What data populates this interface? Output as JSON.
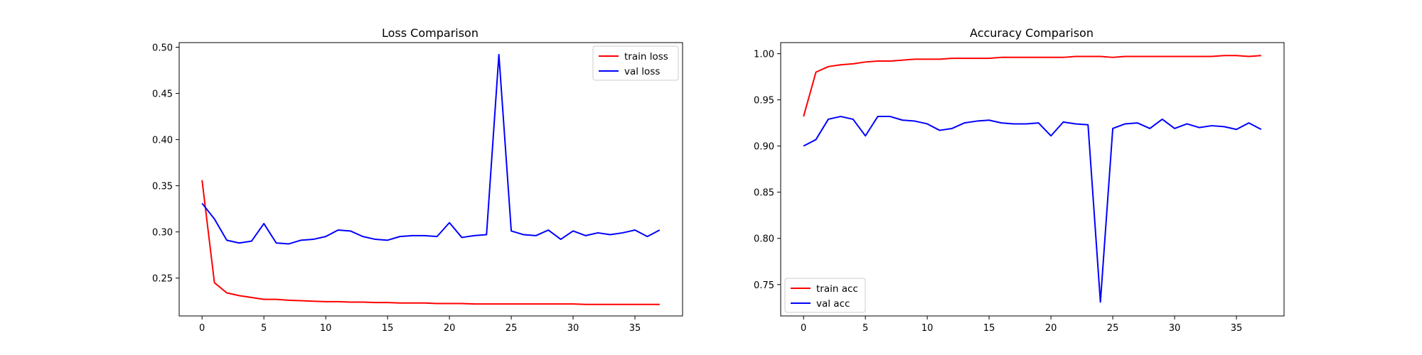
{
  "chart_data": [
    {
      "type": "line",
      "title": "Loss Comparison",
      "xlabel": "",
      "ylabel": "",
      "xlim": [
        -1.85,
        38.85
      ],
      "ylim": [
        0.209,
        0.505
      ],
      "xticks": [
        0,
        5,
        10,
        15,
        20,
        25,
        30,
        35
      ],
      "yticks": [
        0.25,
        0.3,
        0.35,
        0.4,
        0.45,
        0.5
      ],
      "ytick_labels": [
        "0.25",
        "0.30",
        "0.35",
        "0.40",
        "0.45",
        "0.50"
      ],
      "grid": false,
      "legend_position": "upper right",
      "x": [
        0,
        1,
        2,
        3,
        4,
        5,
        6,
        7,
        8,
        9,
        10,
        11,
        12,
        13,
        14,
        15,
        16,
        17,
        18,
        19,
        20,
        21,
        22,
        23,
        24,
        25,
        26,
        27,
        28,
        29,
        30,
        31,
        32,
        33,
        34,
        35,
        36,
        37
      ],
      "series": [
        {
          "name": "train loss",
          "color": "#ff0000",
          "values": [
            0.356,
            0.245,
            0.234,
            0.231,
            0.229,
            0.227,
            0.227,
            0.226,
            0.2255,
            0.225,
            0.2245,
            0.2245,
            0.224,
            0.224,
            0.2235,
            0.2235,
            0.223,
            0.223,
            0.223,
            0.2225,
            0.2225,
            0.2225,
            0.222,
            0.222,
            0.222,
            0.222,
            0.222,
            0.222,
            0.222,
            0.222,
            0.222,
            0.2215,
            0.2215,
            0.2215,
            0.2215,
            0.2215,
            0.2215,
            0.2215
          ]
        },
        {
          "name": "val loss",
          "color": "#0000ff",
          "values": [
            0.331,
            0.314,
            0.291,
            0.288,
            0.29,
            0.309,
            0.288,
            0.287,
            0.291,
            0.292,
            0.295,
            0.302,
            0.301,
            0.295,
            0.292,
            0.291,
            0.295,
            0.296,
            0.296,
            0.295,
            0.31,
            0.294,
            0.296,
            0.297,
            0.492,
            0.301,
            0.297,
            0.296,
            0.302,
            0.292,
            0.301,
            0.296,
            0.299,
            0.297,
            0.299,
            0.302,
            0.295,
            0.302
          ]
        }
      ]
    },
    {
      "type": "line",
      "title": "Accuracy Comparison",
      "xlabel": "",
      "ylabel": "",
      "xlim": [
        -1.85,
        38.85
      ],
      "ylim": [
        0.716,
        1.012
      ],
      "xticks": [
        0,
        5,
        10,
        15,
        20,
        25,
        30,
        35
      ],
      "yticks": [
        0.75,
        0.8,
        0.85,
        0.9,
        0.95,
        1.0
      ],
      "ytick_labels": [
        "0.75",
        "0.80",
        "0.85",
        "0.90",
        "0.95",
        "1.00"
      ],
      "grid": false,
      "legend_position": "lower left",
      "x": [
        0,
        1,
        2,
        3,
        4,
        5,
        6,
        7,
        8,
        9,
        10,
        11,
        12,
        13,
        14,
        15,
        16,
        17,
        18,
        19,
        20,
        21,
        22,
        23,
        24,
        25,
        26,
        27,
        28,
        29,
        30,
        31,
        32,
        33,
        34,
        35,
        36,
        37
      ],
      "series": [
        {
          "name": "train acc",
          "color": "#ff0000",
          "values": [
            0.932,
            0.98,
            0.986,
            0.988,
            0.989,
            0.991,
            0.992,
            0.992,
            0.993,
            0.994,
            0.994,
            0.994,
            0.995,
            0.995,
            0.995,
            0.995,
            0.996,
            0.996,
            0.996,
            0.996,
            0.996,
            0.996,
            0.997,
            0.997,
            0.997,
            0.996,
            0.997,
            0.997,
            0.997,
            0.997,
            0.997,
            0.997,
            0.997,
            0.997,
            0.998,
            0.998,
            0.997,
            0.998
          ]
        },
        {
          "name": "val acc",
          "color": "#0000ff",
          "values": [
            0.9,
            0.907,
            0.929,
            0.932,
            0.929,
            0.911,
            0.932,
            0.932,
            0.928,
            0.927,
            0.924,
            0.917,
            0.919,
            0.925,
            0.927,
            0.928,
            0.925,
            0.924,
            0.924,
            0.925,
            0.911,
            0.926,
            0.924,
            0.923,
            0.731,
            0.919,
            0.924,
            0.925,
            0.919,
            0.929,
            0.919,
            0.924,
            0.92,
            0.922,
            0.921,
            0.918,
            0.925,
            0.918
          ]
        }
      ]
    }
  ]
}
